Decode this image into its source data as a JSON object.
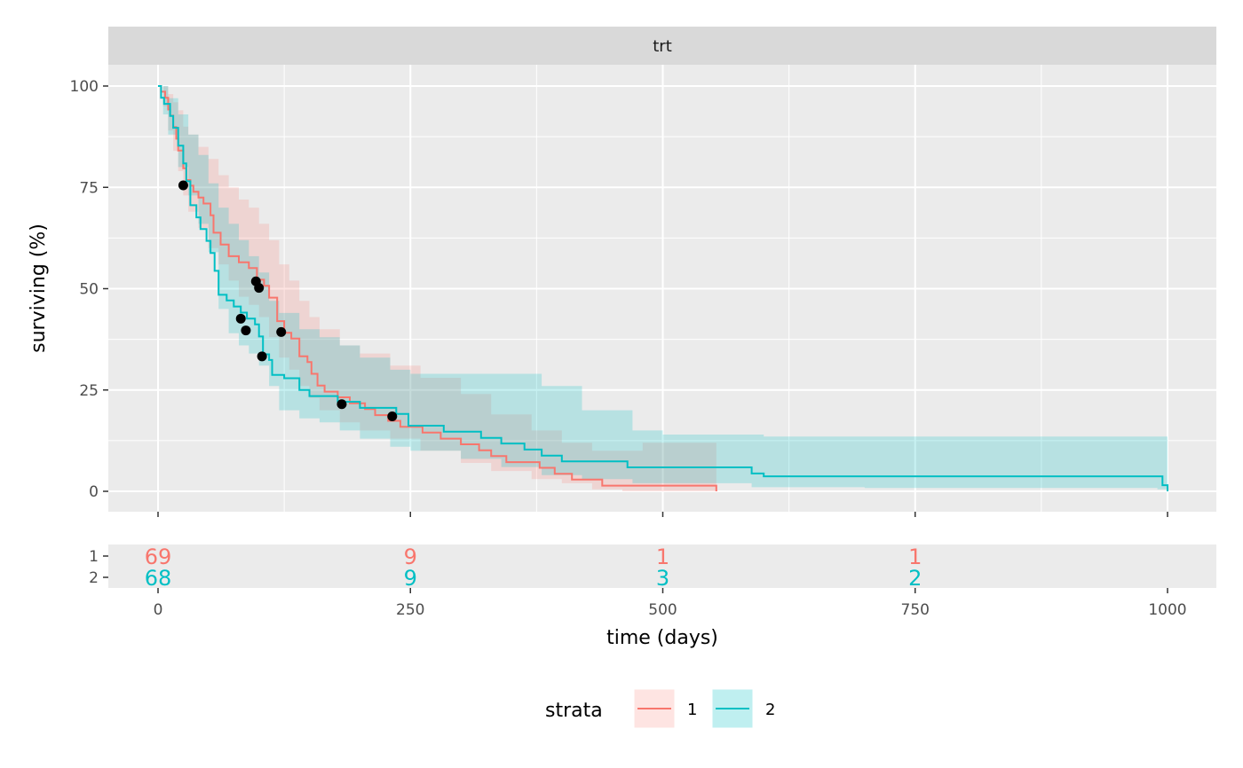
{
  "chart_data": {
    "type": "line",
    "subtype": "kaplan-meier survival with confidence bands and risk table",
    "facet_label": "trt",
    "xlabel": "time (days)",
    "ylabel": "surviving (%)",
    "xlim": [
      0,
      1000
    ],
    "ylim": [
      0,
      100
    ],
    "x_ticks": [
      "0",
      "250",
      "500",
      "750",
      "1000"
    ],
    "y_ticks": [
      "0",
      "25",
      "50",
      "75",
      "100"
    ],
    "grid": true,
    "legend": {
      "title": "strata",
      "position": "bottom",
      "entries": [
        "1",
        "2"
      ]
    },
    "colors": {
      "1": "#F8766D",
      "2": "#00BFC4",
      "point": "#000000",
      "panel": "#EBEBEB",
      "strip": "#D9D9D9"
    },
    "series": [
      {
        "name": "1",
        "color": "#F8766D",
        "steps": [
          [
            0,
            100
          ],
          [
            3,
            98.6
          ],
          [
            7,
            97.1
          ],
          [
            10,
            94.2
          ],
          [
            12,
            92.7
          ],
          [
            15,
            89.9
          ],
          [
            18,
            87
          ],
          [
            20,
            84.1
          ],
          [
            25,
            79.7
          ],
          [
            28,
            76.8
          ],
          [
            32,
            75.4
          ],
          [
            35,
            73.9
          ],
          [
            40,
            72.5
          ],
          [
            45,
            71
          ],
          [
            52,
            68.1
          ],
          [
            55,
            63.8
          ],
          [
            62,
            60.9
          ],
          [
            70,
            58
          ],
          [
            80,
            56.5
          ],
          [
            90,
            55.1
          ],
          [
            98,
            52.2
          ],
          [
            105,
            50.7
          ],
          [
            110,
            47.8
          ],
          [
            118,
            42
          ],
          [
            125,
            39.1
          ],
          [
            132,
            37.7
          ],
          [
            140,
            33.3
          ],
          [
            148,
            31.9
          ],
          [
            152,
            29
          ],
          [
            158,
            26.1
          ],
          [
            165,
            24.6
          ],
          [
            178,
            23.2
          ],
          [
            190,
            21.7
          ],
          [
            205,
            20.3
          ],
          [
            215,
            18.8
          ],
          [
            228,
            17.4
          ],
          [
            240,
            15.9
          ],
          [
            262,
            14.5
          ],
          [
            280,
            13
          ],
          [
            300,
            11.6
          ],
          [
            318,
            10.1
          ],
          [
            330,
            8.7
          ],
          [
            345,
            7.2
          ],
          [
            378,
            5.8
          ],
          [
            393,
            4.3
          ],
          [
            410,
            2.9
          ],
          [
            440,
            1.4
          ],
          [
            480,
            1.4
          ],
          [
            553,
            1.4
          ],
          [
            553,
            0
          ]
        ],
        "ci_upper": [
          [
            0,
            100
          ],
          [
            5,
            100
          ],
          [
            10,
            98
          ],
          [
            15,
            96
          ],
          [
            20,
            94
          ],
          [
            25,
            90
          ],
          [
            30,
            88
          ],
          [
            40,
            85
          ],
          [
            50,
            82
          ],
          [
            60,
            78
          ],
          [
            70,
            75
          ],
          [
            80,
            72
          ],
          [
            90,
            70
          ],
          [
            100,
            66
          ],
          [
            110,
            62
          ],
          [
            120,
            56
          ],
          [
            130,
            52
          ],
          [
            140,
            47
          ],
          [
            150,
            43
          ],
          [
            160,
            40
          ],
          [
            180,
            36
          ],
          [
            200,
            34
          ],
          [
            230,
            31
          ],
          [
            260,
            28
          ],
          [
            300,
            24
          ],
          [
            330,
            19
          ],
          [
            370,
            15
          ],
          [
            400,
            12
          ],
          [
            430,
            10
          ],
          [
            460,
            10
          ],
          [
            480,
            12
          ],
          [
            553,
            12
          ]
        ],
        "ci_lower": [
          [
            0,
            100
          ],
          [
            5,
            95
          ],
          [
            10,
            89
          ],
          [
            15,
            84
          ],
          [
            20,
            79
          ],
          [
            25,
            73
          ],
          [
            30,
            69
          ],
          [
            40,
            65
          ],
          [
            50,
            60
          ],
          [
            60,
            56
          ],
          [
            70,
            52
          ],
          [
            80,
            48
          ],
          [
            90,
            46
          ],
          [
            100,
            43
          ],
          [
            110,
            38
          ],
          [
            120,
            33
          ],
          [
            130,
            30
          ],
          [
            140,
            26
          ],
          [
            150,
            23
          ],
          [
            160,
            20
          ],
          [
            180,
            17
          ],
          [
            200,
            15
          ],
          [
            230,
            13
          ],
          [
            260,
            10
          ],
          [
            300,
            7
          ],
          [
            330,
            5
          ],
          [
            370,
            3
          ],
          [
            400,
            2
          ],
          [
            430,
            0.5
          ],
          [
            460,
            0
          ],
          [
            553,
            0
          ]
        ]
      },
      {
        "name": "2",
        "color": "#00BFC4",
        "steps": [
          [
            0,
            100
          ],
          [
            3,
            97.1
          ],
          [
            6,
            95.6
          ],
          [
            12,
            92.6
          ],
          [
            15,
            89.7
          ],
          [
            20,
            85.3
          ],
          [
            25,
            80.9
          ],
          [
            28,
            76.5
          ],
          [
            32,
            70.6
          ],
          [
            38,
            67.6
          ],
          [
            42,
            64.7
          ],
          [
            48,
            61.8
          ],
          [
            52,
            58.8
          ],
          [
            56,
            54.4
          ],
          [
            60,
            48.5
          ],
          [
            68,
            47.1
          ],
          [
            75,
            45.6
          ],
          [
            82,
            44.1
          ],
          [
            88,
            42.6
          ],
          [
            96,
            41.2
          ],
          [
            100,
            38.2
          ],
          [
            104,
            33.8
          ],
          [
            110,
            32.4
          ],
          [
            113,
            28.7
          ],
          [
            125,
            27.9
          ],
          [
            140,
            25
          ],
          [
            150,
            23.5
          ],
          [
            164,
            23.5
          ],
          [
            178,
            22.1
          ],
          [
            200,
            20.6
          ],
          [
            236,
            19.1
          ],
          [
            248,
            16.2
          ],
          [
            268,
            16.2
          ],
          [
            283,
            14.7
          ],
          [
            320,
            13.2
          ],
          [
            340,
            11.8
          ],
          [
            363,
            10.3
          ],
          [
            380,
            8.8
          ],
          [
            400,
            7.4
          ],
          [
            465,
            5.9
          ],
          [
            540,
            5.9
          ],
          [
            588,
            4.4
          ],
          [
            600,
            3.7
          ],
          [
            700,
            3.7
          ],
          [
            990,
            3.7
          ],
          [
            995,
            1.5
          ],
          [
            1000,
            0
          ]
        ],
        "ci_upper": [
          [
            0,
            100
          ],
          [
            5,
            100
          ],
          [
            10,
            97
          ],
          [
            20,
            93
          ],
          [
            30,
            88
          ],
          [
            40,
            83
          ],
          [
            50,
            76
          ],
          [
            60,
            70
          ],
          [
            70,
            66
          ],
          [
            80,
            62
          ],
          [
            90,
            58
          ],
          [
            100,
            54
          ],
          [
            110,
            47
          ],
          [
            120,
            44
          ],
          [
            140,
            40
          ],
          [
            160,
            38
          ],
          [
            180,
            36
          ],
          [
            200,
            33
          ],
          [
            230,
            30
          ],
          [
            250,
            29
          ],
          [
            300,
            29
          ],
          [
            340,
            29
          ],
          [
            380,
            26
          ],
          [
            420,
            20
          ],
          [
            470,
            15
          ],
          [
            500,
            14
          ],
          [
            588,
            14
          ],
          [
            600,
            13.5
          ],
          [
            990,
            13.5
          ],
          [
            1000,
            13.5
          ]
        ],
        "ci_lower": [
          [
            0,
            100
          ],
          [
            5,
            93
          ],
          [
            10,
            88
          ],
          [
            20,
            80
          ],
          [
            30,
            73
          ],
          [
            40,
            66
          ],
          [
            50,
            59
          ],
          [
            60,
            45
          ],
          [
            70,
            39
          ],
          [
            80,
            36
          ],
          [
            90,
            34
          ],
          [
            100,
            31
          ],
          [
            110,
            26
          ],
          [
            120,
            20
          ],
          [
            140,
            18
          ],
          [
            160,
            17
          ],
          [
            180,
            15
          ],
          [
            200,
            13
          ],
          [
            230,
            11
          ],
          [
            250,
            10
          ],
          [
            300,
            8
          ],
          [
            340,
            6
          ],
          [
            380,
            4
          ],
          [
            420,
            3
          ],
          [
            470,
            2
          ],
          [
            500,
            2
          ],
          [
            588,
            1
          ],
          [
            700,
            0.8
          ],
          [
            990,
            0.5
          ],
          [
            1000,
            0
          ]
        ]
      }
    ],
    "censor_points": [
      [
        25,
        75.5
      ],
      [
        82,
        42.6
      ],
      [
        87,
        39.7
      ],
      [
        97,
        51.8
      ],
      [
        100,
        50.2
      ],
      [
        103,
        33.3
      ],
      [
        122,
        39.3
      ],
      [
        182,
        21.5
      ],
      [
        232,
        18.5
      ]
    ],
    "risk_table": {
      "times": [
        0,
        250,
        500,
        750
      ],
      "rows": [
        {
          "stratum": "1",
          "counts": [
            "69",
            "9",
            "1",
            "1"
          ]
        },
        {
          "stratum": "2",
          "counts": [
            "68",
            "9",
            "3",
            "2"
          ]
        }
      ]
    }
  }
}
